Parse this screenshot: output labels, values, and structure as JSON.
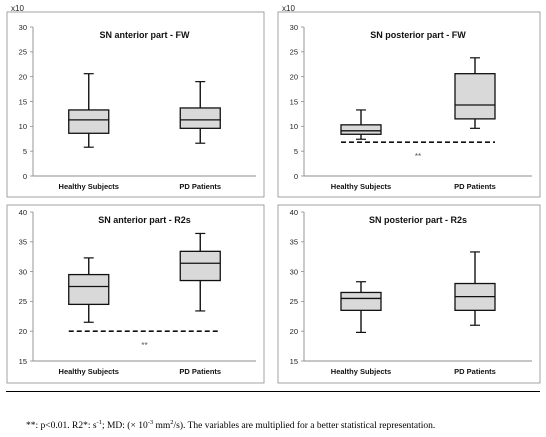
{
  "chart_data": [
    {
      "type": "boxplot",
      "title": "SN anterior part - FW",
      "multiplier_label": "x10",
      "yticks": [
        0,
        5,
        10,
        15,
        20,
        25,
        30
      ],
      "ylim": [
        0,
        30
      ],
      "categories": [
        "Healthy Subjects",
        "PD Patients"
      ],
      "boxes": [
        {
          "min": 5.8,
          "q1": 8.6,
          "median": 11.3,
          "q3": 13.3,
          "max": 20.6
        },
        {
          "min": 6.6,
          "q1": 9.6,
          "median": 11.3,
          "q3": 13.7,
          "max": 19.0
        }
      ],
      "significance": null
    },
    {
      "type": "boxplot",
      "title": "SN posterior part - FW",
      "multiplier_label": "x10",
      "yticks": [
        0,
        5,
        10,
        15,
        20,
        25,
        30
      ],
      "ylim": [
        0,
        30
      ],
      "categories": [
        "Healthy Subjects",
        "PD Patients"
      ],
      "boxes": [
        {
          "min": 7.4,
          "q1": 8.4,
          "median": 9.1,
          "q3": 10.3,
          "max": 13.3
        },
        {
          "min": 9.6,
          "q1": 11.5,
          "median": 14.3,
          "q3": 20.6,
          "max": 23.8
        }
      ],
      "significance": {
        "label": "**",
        "y": 6.8
      }
    },
    {
      "type": "boxplot",
      "title": "SN anterior part - R2s",
      "multiplier_label": "",
      "yticks": [
        15,
        20,
        25,
        30,
        35,
        40
      ],
      "ylim": [
        15,
        40
      ],
      "categories": [
        "Healthy Subjects",
        "PD Patients"
      ],
      "boxes": [
        {
          "min": 21.5,
          "q1": 24.5,
          "median": 27.5,
          "q3": 29.5,
          "max": 32.3
        },
        {
          "min": 23.4,
          "q1": 28.5,
          "median": 31.4,
          "q3": 33.4,
          "max": 36.4
        }
      ],
      "significance": {
        "label": "**",
        "y": 20.0
      }
    },
    {
      "type": "boxplot",
      "title": "SN posterior part - R2s",
      "multiplier_label": "",
      "yticks": [
        15,
        20,
        25,
        30,
        35,
        40
      ],
      "ylim": [
        15,
        40
      ],
      "categories": [
        "Healthy Subjects",
        "PD Patients"
      ],
      "boxes": [
        {
          "min": 19.8,
          "q1": 23.5,
          "median": 25.5,
          "q3": 26.5,
          "max": 28.3
        },
        {
          "min": 21.0,
          "q1": 23.5,
          "median": 25.8,
          "q3": 28.0,
          "max": 33.3
        }
      ],
      "significance": null
    }
  ],
  "footnote": {
    "a": "**:  p<0.01. R2*: s",
    "b": "-1",
    "c": "; MD: (× 10",
    "d": "-3",
    "e": " mm",
    "f": "2",
    "g": "/s). The variables are multiplied for a better statistical representation."
  }
}
